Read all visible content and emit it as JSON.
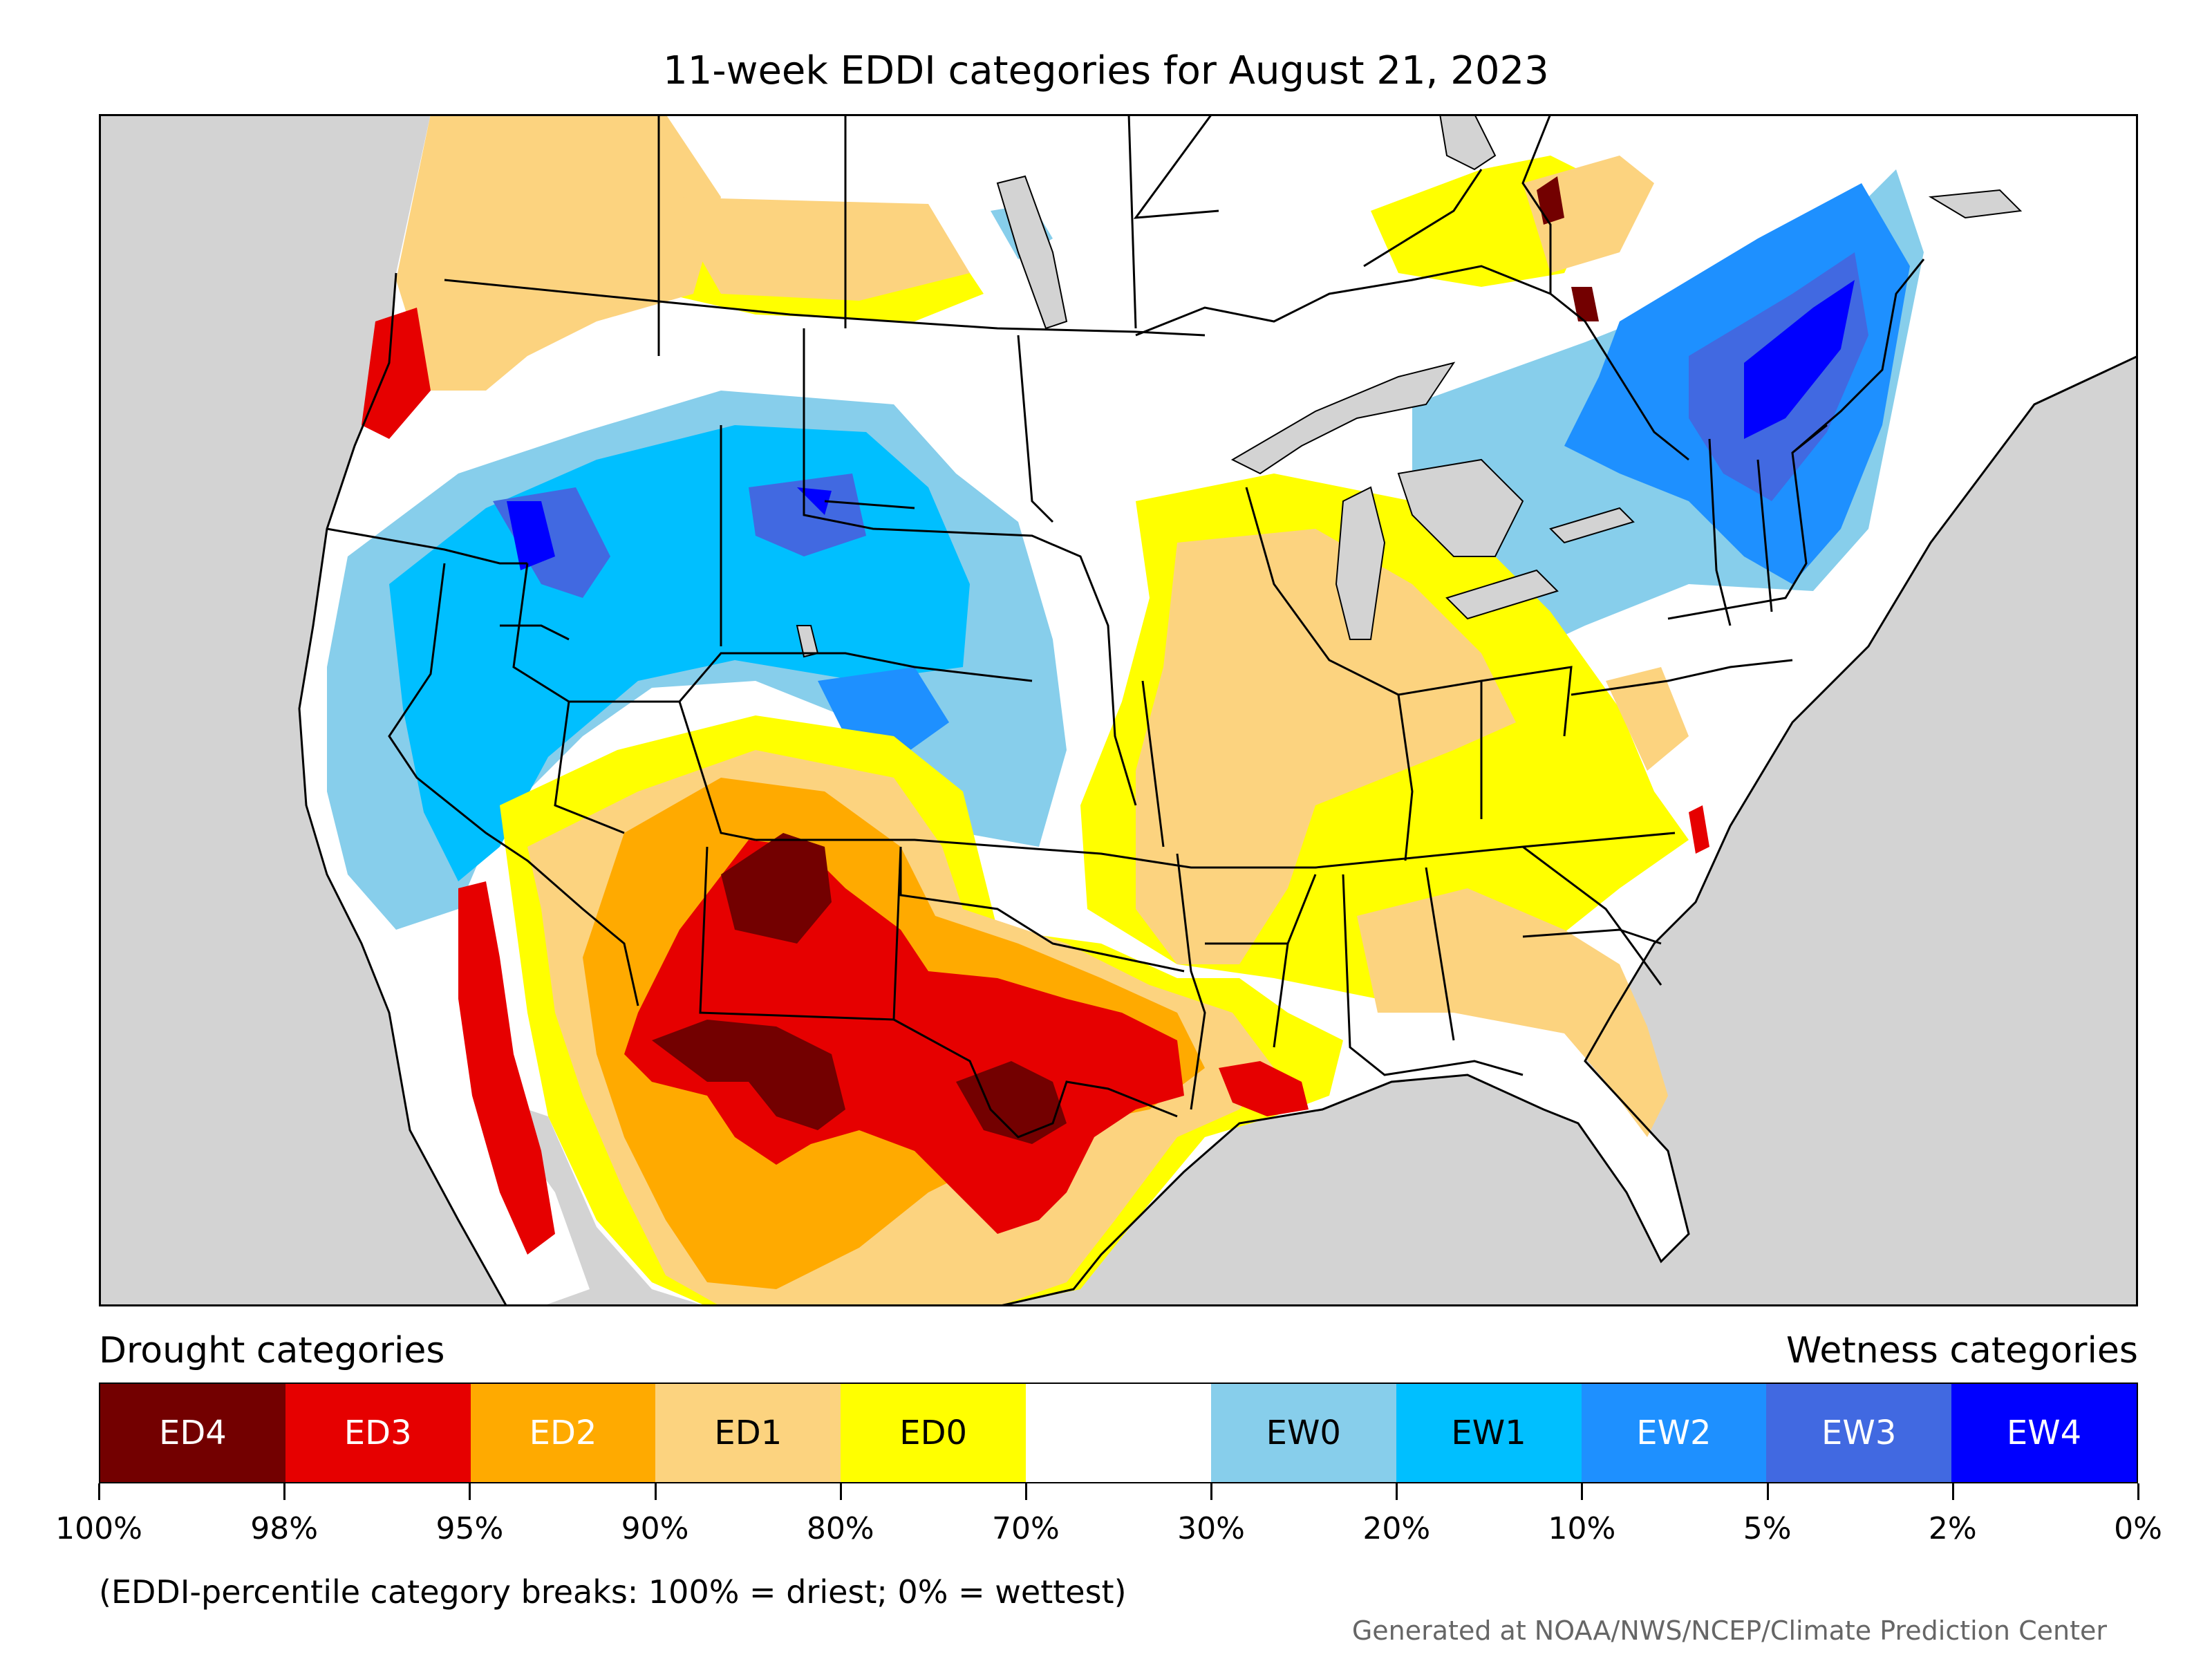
{
  "title": "11-week EDDI categories for August 21, 2023",
  "map": {
    "region": "Contiguous United States with southern Canada and northern Mexico",
    "background_color": "#d3d3d3",
    "boundary_color": "#000000",
    "regions": [
      {
        "category": "ED4",
        "area": "northern New Mexico / southern Colorado"
      },
      {
        "category": "ED4",
        "area": "southern New Mexico / west Texas"
      },
      {
        "category": "ED4",
        "area": "central Texas"
      },
      {
        "category": "ED3",
        "area": "New Mexico, Texas, Pacific Northwest coast, Louisiana coast"
      },
      {
        "category": "ED2",
        "area": "Arizona, southwest, southern Plains"
      },
      {
        "category": "ED1",
        "area": "Texas, Midwest, Southeast, northern Mexico"
      },
      {
        "category": "ED0",
        "area": "scattered Midwest and Southeast"
      },
      {
        "category": "EW1",
        "area": "Great Basin, northern Rockies"
      },
      {
        "category": "EW3",
        "area": "Idaho, Wyoming, northern Nevada"
      },
      {
        "category": "EW2",
        "area": "Quebec, Maine, New England"
      },
      {
        "category": "EW4",
        "area": "St. Lawrence valley / Quebec"
      }
    ]
  },
  "legend": {
    "drought_heading": "Drought categories",
    "wetness_heading": "Wetness categories",
    "categories": [
      {
        "label": "ED4",
        "color": "#730000",
        "text_color": "#ffffff"
      },
      {
        "label": "ED3",
        "color": "#e60000",
        "text_color": "#ffffff"
      },
      {
        "label": "ED2",
        "color": "#ffaa00",
        "text_color": "#ffffff"
      },
      {
        "label": "ED1",
        "color": "#fcd37f",
        "text_color": "#000000"
      },
      {
        "label": "ED0",
        "color": "#ffff00",
        "text_color": "#000000"
      },
      {
        "label": "",
        "color": "#ffffff",
        "text_color": "#000000"
      },
      {
        "label": "EW0",
        "color": "#87ceeb",
        "text_color": "#000000"
      },
      {
        "label": "EW1",
        "color": "#00bfff",
        "text_color": "#000000"
      },
      {
        "label": "EW2",
        "color": "#1e90ff",
        "text_color": "#ffffff"
      },
      {
        "label": "EW3",
        "color": "#4169e1",
        "text_color": "#ffffff"
      },
      {
        "label": "EW4",
        "color": "#0000ff",
        "text_color": "#ffffff"
      }
    ],
    "ticks": [
      "100%",
      "98%",
      "95%",
      "90%",
      "80%",
      "70%",
      "30%",
      "20%",
      "10%",
      "5%",
      "2%",
      "0%"
    ]
  },
  "footnote": "(EDDI-percentile category breaks: 100% = driest; 0% = wettest)",
  "credit": "Generated at NOAA/NWS/NCEP/Climate Prediction Center"
}
